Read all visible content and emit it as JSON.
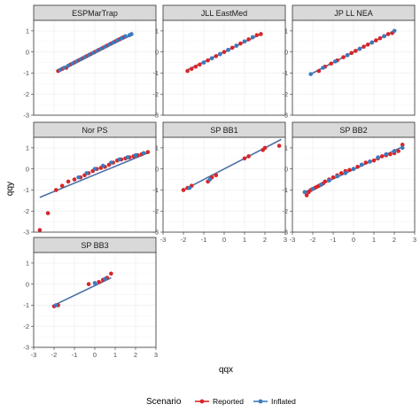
{
  "chart_data": {
    "type": "scatter",
    "description_free": true,
    "xlabel": "qqx",
    "ylabel": "qqy",
    "xlim": [
      -3,
      3
    ],
    "ylim": [
      -3,
      1.5
    ],
    "x_ticks": [
      -3,
      -2,
      -1,
      0,
      1,
      2,
      3
    ],
    "y_ticks": [
      -3,
      -2,
      -1,
      0,
      1
    ],
    "grid": true,
    "legend": {
      "title": "Scenario",
      "position": "bottom",
      "items": [
        {
          "name": "Reported",
          "color": "#d7262a"
        },
        {
          "name": "Inflated",
          "color": "#3a7bbf"
        }
      ]
    },
    "line_color": "#4a6fa5",
    "panels": [
      {
        "title": "ESPMarTrap",
        "line": {
          "x": [
            -1.8,
            1.8
          ],
          "y": [
            -0.85,
            0.8
          ]
        },
        "series": [
          {
            "name": "Reported",
            "x": [
              -1.8,
              -1.6,
              -1.4,
              -1.2,
              -1.0,
              -0.8,
              -0.6,
              -0.4,
              -0.2,
              0.0,
              0.2,
              0.4,
              0.6,
              0.8,
              1.0,
              1.1,
              1.2,
              1.3,
              1.4
            ],
            "y": [
              -0.9,
              -0.8,
              -0.75,
              -0.6,
              -0.5,
              -0.4,
              -0.3,
              -0.2,
              -0.1,
              0.0,
              0.1,
              0.2,
              0.3,
              0.4,
              0.5,
              0.55,
              0.6,
              0.65,
              0.7
            ]
          },
          {
            "name": "Inflated",
            "x": [
              -1.7,
              -1.5,
              -1.3,
              -1.1,
              -0.9,
              -0.7,
              -0.5,
              -0.3,
              -0.1,
              0.1,
              0.3,
              0.5,
              0.7,
              0.9,
              1.1,
              1.3,
              1.5,
              1.7,
              1.8
            ],
            "y": [
              -0.85,
              -0.75,
              -0.65,
              -0.55,
              -0.45,
              -0.35,
              -0.25,
              -0.15,
              -0.05,
              0.05,
              0.15,
              0.25,
              0.35,
              0.45,
              0.55,
              0.65,
              0.75,
              0.8,
              0.85
            ]
          }
        ]
      },
      {
        "title": "JLL EastMed",
        "line": {
          "x": [
            -1.8,
            1.8
          ],
          "y": [
            -0.85,
            0.85
          ]
        },
        "series": [
          {
            "name": "Reported",
            "x": [
              -1.8,
              -1.6,
              -1.4,
              -1.2,
              -1.0,
              -0.8,
              -0.6,
              -0.4,
              -0.2,
              0.0,
              0.2,
              0.4,
              0.6,
              0.8,
              1.0,
              1.2,
              1.4,
              1.6,
              1.8
            ],
            "y": [
              -0.9,
              -0.8,
              -0.7,
              -0.6,
              -0.5,
              -0.4,
              -0.3,
              -0.2,
              -0.1,
              0.0,
              0.1,
              0.2,
              0.3,
              0.4,
              0.5,
              0.6,
              0.7,
              0.8,
              0.85
            ]
          },
          {
            "name": "Inflated",
            "x": [
              -1.0,
              -0.6,
              -0.2,
              0.2,
              0.6,
              1.0,
              1.4
            ],
            "y": [
              -0.5,
              -0.3,
              -0.1,
              0.1,
              0.3,
              0.5,
              0.7
            ]
          }
        ]
      },
      {
        "title": "JP LL NEA",
        "line": {
          "x": [
            -2.1,
            2.1
          ],
          "y": [
            -1.05,
            1.05
          ]
        },
        "series": [
          {
            "name": "Reported",
            "x": [
              -1.7,
              -1.4,
              -1.1,
              -0.8,
              -0.5,
              -0.3,
              -0.1,
              0.1,
              0.3,
              0.5,
              0.7,
              0.9,
              1.1,
              1.3,
              1.5,
              1.7,
              1.9
            ],
            "y": [
              -0.9,
              -0.7,
              -0.55,
              -0.4,
              -0.25,
              -0.15,
              -0.05,
              0.05,
              0.15,
              0.25,
              0.35,
              0.45,
              0.55,
              0.65,
              0.75,
              0.85,
              0.9
            ]
          },
          {
            "name": "Inflated",
            "x": [
              -2.1,
              -1.5,
              -0.9,
              -0.3,
              0.3,
              0.9,
              1.5,
              2.0
            ],
            "y": [
              -1.05,
              -0.75,
              -0.45,
              -0.15,
              0.15,
              0.45,
              0.75,
              1.0
            ]
          }
        ]
      },
      {
        "title": "Nor PS",
        "line": {
          "x": [
            -2.7,
            2.7
          ],
          "y": [
            -1.35,
            0.8
          ]
        },
        "series": [
          {
            "name": "Reported",
            "x": [
              -2.7,
              -2.3,
              -1.9,
              -1.6,
              -1.3,
              -1.0,
              -0.7,
              -0.5,
              -0.3,
              -0.1,
              0.1,
              0.3,
              0.5,
              0.7,
              0.9,
              1.1,
              1.3,
              1.5,
              1.7,
              1.9,
              2.1,
              2.3,
              2.6
            ],
            "y": [
              -2.9,
              -2.1,
              -1.0,
              -0.8,
              -0.6,
              -0.5,
              -0.4,
              -0.3,
              -0.2,
              -0.1,
              0.0,
              0.05,
              0.1,
              0.2,
              0.3,
              0.4,
              0.45,
              0.5,
              0.55,
              0.6,
              0.65,
              0.7,
              0.8
            ]
          },
          {
            "name": "Inflated",
            "x": [
              -0.8,
              -0.4,
              0.0,
              0.4,
              0.8,
              1.2,
              1.6,
              2.0,
              2.4
            ],
            "y": [
              -0.4,
              -0.2,
              0.0,
              0.15,
              0.3,
              0.45,
              0.55,
              0.65,
              0.75
            ]
          }
        ]
      },
      {
        "title": "SP BB1",
        "line": {
          "x": [
            -2.0,
            2.8
          ],
          "y": [
            -1.0,
            1.4
          ]
        },
        "series": [
          {
            "name": "Reported",
            "x": [
              -2.0,
              -1.8,
              -1.6,
              -0.8,
              -0.6,
              -0.4,
              1.0,
              1.2,
              1.9,
              2.0,
              2.7
            ],
            "y": [
              -1.0,
              -0.9,
              -0.8,
              -0.6,
              -0.4,
              -0.3,
              0.5,
              0.6,
              0.9,
              1.0,
              1.1
            ]
          },
          {
            "name": "Inflated",
            "x": [
              -1.7,
              -0.7
            ],
            "y": [
              -0.9,
              -0.5
            ]
          }
        ]
      },
      {
        "title": "SP BB2",
        "line": {
          "x": [
            -2.4,
            2.4
          ],
          "y": [
            -1.1,
            1.05
          ]
        },
        "series": [
          {
            "name": "Reported",
            "x": [
              -2.3,
              -2.2,
              -2.1,
              -2.0,
              -1.9,
              -1.8,
              -1.7,
              -1.6,
              -1.5,
              -1.4,
              -1.2,
              -1.0,
              -0.8,
              -0.6,
              -0.4,
              -0.2,
              0.0,
              0.2,
              0.4,
              0.6,
              0.8,
              1.0,
              1.2,
              1.4,
              1.6,
              1.8,
              2.0,
              2.2,
              2.4
            ],
            "y": [
              -1.25,
              -1.1,
              -1.0,
              -0.95,
              -0.9,
              -0.85,
              -0.8,
              -0.75,
              -0.7,
              -0.6,
              -0.5,
              -0.4,
              -0.3,
              -0.2,
              -0.1,
              -0.05,
              0.0,
              0.1,
              0.2,
              0.3,
              0.35,
              0.4,
              0.5,
              0.6,
              0.65,
              0.7,
              0.75,
              0.85,
              1.15
            ]
          },
          {
            "name": "Inflated",
            "x": [
              -2.4,
              -2.0,
              -1.6,
              -1.2,
              -0.8,
              -0.4,
              0.0,
              0.4,
              0.8,
              1.2,
              1.6,
              2.0,
              2.4
            ],
            "y": [
              -1.1,
              -0.95,
              -0.75,
              -0.55,
              -0.35,
              -0.2,
              0.0,
              0.2,
              0.35,
              0.55,
              0.7,
              0.85,
              1.0
            ]
          }
        ]
      },
      {
        "title": "SP BB3",
        "line": {
          "x": [
            -2.0,
            0.8
          ],
          "y": [
            -1.0,
            0.3
          ]
        },
        "series": [
          {
            "name": "Reported",
            "x": [
              -2.0,
              -1.8,
              -0.3,
              0.2,
              0.4,
              0.6,
              0.8
            ],
            "y": [
              -1.05,
              -1.0,
              0.0,
              0.1,
              0.2,
              0.3,
              0.5
            ]
          },
          {
            "name": "Inflated",
            "x": [
              -1.9,
              0.0,
              0.5
            ],
            "y": [
              -1.0,
              0.05,
              0.25
            ]
          }
        ]
      }
    ]
  }
}
